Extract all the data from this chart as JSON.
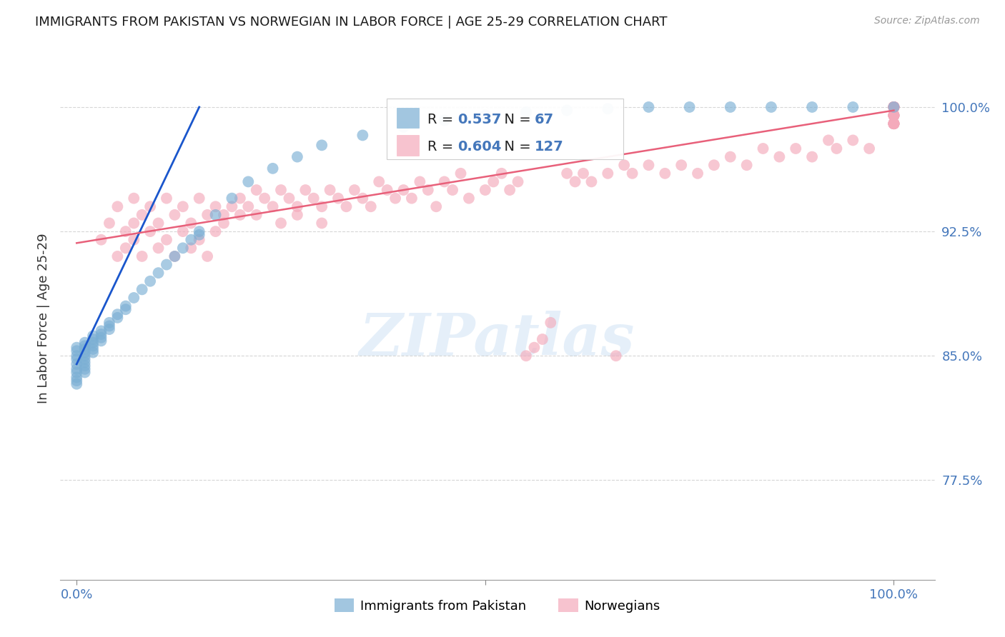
{
  "title": "IMMIGRANTS FROM PAKISTAN VS NORWEGIAN IN LABOR FORCE | AGE 25-29 CORRELATION CHART",
  "source": "Source: ZipAtlas.com",
  "ylabel": "In Labor Force | Age 25-29",
  "xlim": [
    -0.02,
    1.05
  ],
  "ylim": [
    0.715,
    1.03
  ],
  "yticks": [
    0.775,
    0.85,
    0.925,
    1.0
  ],
  "ytick_labels": [
    "77.5%",
    "85.0%",
    "92.5%",
    "100.0%"
  ],
  "xticks": [
    0.0,
    0.5,
    1.0
  ],
  "xtick_labels": [
    "0.0%",
    "",
    "100.0%"
  ],
  "legend_r_blue": "0.537",
  "legend_n_blue": "67",
  "legend_r_pink": "0.604",
  "legend_n_pink": "127",
  "legend_label_blue": "Immigrants from Pakistan",
  "legend_label_pink": "Norwegians",
  "blue_color": "#7BAFD4",
  "pink_color": "#F4AABB",
  "blue_line_color": "#1A56CC",
  "pink_line_color": "#E8607A",
  "title_color": "#1a1a1a",
  "axis_label_color": "#333333",
  "tick_color": "#4477BB",
  "grid_color": "#CCCCCC",
  "pakistan_x": [
    0.0,
    0.0,
    0.0,
    0.0,
    0.0,
    0.0,
    0.0,
    0.0,
    0.0,
    0.0,
    0.01,
    0.01,
    0.01,
    0.01,
    0.01,
    0.01,
    0.01,
    0.01,
    0.01,
    0.01,
    0.02,
    0.02,
    0.02,
    0.02,
    0.02,
    0.02,
    0.03,
    0.03,
    0.03,
    0.03,
    0.04,
    0.04,
    0.04,
    0.05,
    0.05,
    0.06,
    0.06,
    0.07,
    0.08,
    0.09,
    0.1,
    0.11,
    0.12,
    0.13,
    0.14,
    0.15,
    0.15,
    0.17,
    0.19,
    0.21,
    0.24,
    0.27,
    0.3,
    0.35,
    0.4,
    0.45,
    0.5,
    0.55,
    0.6,
    0.65,
    0.7,
    0.75,
    0.8,
    0.85,
    0.9,
    0.95,
    1.0
  ],
  "pakistan_y": [
    0.855,
    0.853,
    0.85,
    0.848,
    0.845,
    0.842,
    0.84,
    0.837,
    0.835,
    0.833,
    0.858,
    0.856,
    0.854,
    0.852,
    0.85,
    0.848,
    0.846,
    0.844,
    0.842,
    0.84,
    0.862,
    0.86,
    0.858,
    0.856,
    0.854,
    0.852,
    0.865,
    0.863,
    0.861,
    0.859,
    0.87,
    0.868,
    0.866,
    0.875,
    0.873,
    0.88,
    0.878,
    0.885,
    0.89,
    0.895,
    0.9,
    0.905,
    0.91,
    0.915,
    0.92,
    0.925,
    0.923,
    0.935,
    0.945,
    0.955,
    0.963,
    0.97,
    0.977,
    0.983,
    0.988,
    0.992,
    0.995,
    0.997,
    0.998,
    0.999,
    1.0,
    1.0,
    1.0,
    1.0,
    1.0,
    1.0,
    1.0
  ],
  "norway_x": [
    0.03,
    0.04,
    0.05,
    0.05,
    0.06,
    0.06,
    0.07,
    0.07,
    0.07,
    0.08,
    0.08,
    0.09,
    0.09,
    0.1,
    0.1,
    0.11,
    0.11,
    0.12,
    0.12,
    0.13,
    0.13,
    0.14,
    0.14,
    0.15,
    0.15,
    0.16,
    0.16,
    0.17,
    0.17,
    0.18,
    0.18,
    0.19,
    0.2,
    0.2,
    0.21,
    0.22,
    0.22,
    0.23,
    0.24,
    0.25,
    0.25,
    0.26,
    0.27,
    0.27,
    0.28,
    0.29,
    0.3,
    0.3,
    0.31,
    0.32,
    0.33,
    0.34,
    0.35,
    0.36,
    0.37,
    0.38,
    0.39,
    0.4,
    0.41,
    0.42,
    0.43,
    0.44,
    0.45,
    0.46,
    0.47,
    0.48,
    0.5,
    0.51,
    0.52,
    0.53,
    0.54,
    0.55,
    0.56,
    0.57,
    0.58,
    0.6,
    0.61,
    0.62,
    0.63,
    0.65,
    0.66,
    0.67,
    0.68,
    0.7,
    0.72,
    0.74,
    0.76,
    0.78,
    0.8,
    0.82,
    0.84,
    0.86,
    0.88,
    0.9,
    0.92,
    0.93,
    0.95,
    0.97,
    1.0,
    1.0,
    1.0,
    1.0,
    1.0,
    1.0,
    1.0,
    1.0,
    1.0,
    1.0,
    1.0,
    1.0,
    1.0,
    1.0,
    1.0,
    1.0,
    1.0,
    1.0,
    1.0,
    1.0,
    1.0,
    1.0,
    1.0,
    1.0,
    1.0,
    1.0,
    1.0,
    1.0,
    1.0
  ],
  "norway_y": [
    0.92,
    0.93,
    0.91,
    0.94,
    0.925,
    0.915,
    0.93,
    0.945,
    0.92,
    0.935,
    0.91,
    0.94,
    0.925,
    0.93,
    0.915,
    0.945,
    0.92,
    0.935,
    0.91,
    0.94,
    0.925,
    0.93,
    0.915,
    0.945,
    0.92,
    0.935,
    0.91,
    0.94,
    0.925,
    0.93,
    0.935,
    0.94,
    0.945,
    0.935,
    0.94,
    0.95,
    0.935,
    0.945,
    0.94,
    0.95,
    0.93,
    0.945,
    0.94,
    0.935,
    0.95,
    0.945,
    0.94,
    0.93,
    0.95,
    0.945,
    0.94,
    0.95,
    0.945,
    0.94,
    0.955,
    0.95,
    0.945,
    0.95,
    0.945,
    0.955,
    0.95,
    0.94,
    0.955,
    0.95,
    0.96,
    0.945,
    0.95,
    0.955,
    0.96,
    0.95,
    0.955,
    0.85,
    0.855,
    0.86,
    0.87,
    0.96,
    0.955,
    0.96,
    0.955,
    0.96,
    0.85,
    0.965,
    0.96,
    0.965,
    0.96,
    0.965,
    0.96,
    0.965,
    0.97,
    0.965,
    0.975,
    0.97,
    0.975,
    0.97,
    0.98,
    0.975,
    0.98,
    0.975,
    1.0,
    1.0,
    0.99,
    1.0,
    0.995,
    1.0,
    0.995,
    1.0,
    0.99,
    1.0,
    0.995,
    1.0,
    0.99,
    1.0,
    0.995,
    0.99,
    1.0,
    0.995,
    0.99,
    1.0,
    0.995,
    0.99,
    1.0,
    0.995,
    0.99,
    1.0,
    0.995,
    0.99,
    1.0
  ],
  "blue_trend_x0": 0.0,
  "blue_trend_x1": 0.15,
  "blue_trend_y0": 0.845,
  "blue_trend_y1": 1.0,
  "pink_trend_x0": 0.0,
  "pink_trend_x1": 1.0,
  "pink_trend_y0": 0.918,
  "pink_trend_y1": 0.998
}
